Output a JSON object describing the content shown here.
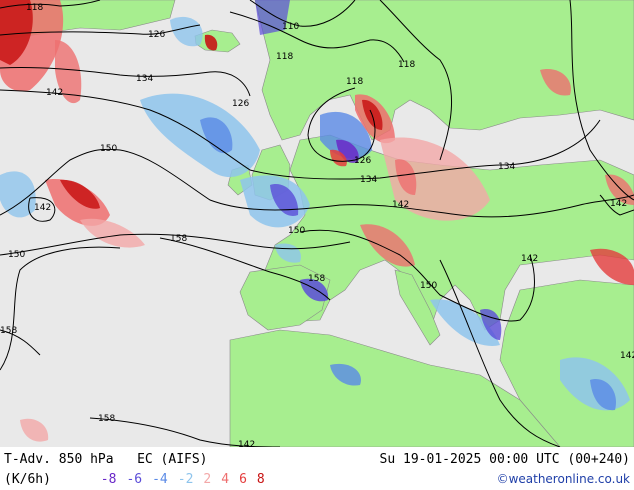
{
  "footer": {
    "title": "T-Adv. 850 hPa",
    "model": "EC (AIFS)",
    "unit": "(K/6h)",
    "datetime": "Su 19-01-2025 00:00 UTC (00+240)",
    "credit": "©weatheronline.co.uk",
    "legend": [
      {
        "label": "-8",
        "color": "#6a28c8"
      },
      {
        "label": "-6",
        "color": "#5a4cd8"
      },
      {
        "label": "-4",
        "color": "#5a8ae6"
      },
      {
        "label": "-2",
        "color": "#8ec4ec"
      },
      {
        "label": "2",
        "color": "#f3a8a8"
      },
      {
        "label": "4",
        "color": "#ee6f6f"
      },
      {
        "label": "6",
        "color": "#e43c3c"
      },
      {
        "label": "8",
        "color": "#c81414"
      }
    ]
  },
  "map": {
    "land_color": "#a7ee8f",
    "sea_color": "#e9e9e9",
    "contour_labels": [
      "118",
      "126",
      "110",
      "118",
      "118",
      "134",
      "142",
      "126",
      "118",
      "126",
      "134",
      "150",
      "134",
      "142",
      "142",
      "150",
      "158",
      "150",
      "158",
      "142",
      "150",
      "158",
      "158",
      "142",
      "142",
      "142"
    ]
  }
}
